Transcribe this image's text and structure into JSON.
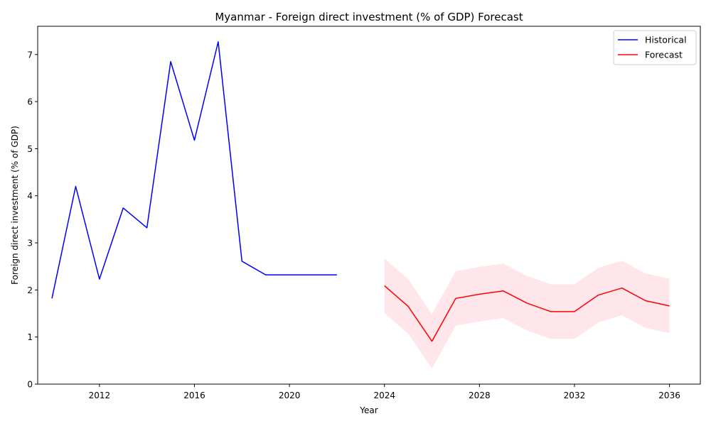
{
  "chart_data": {
    "type": "line",
    "title": "Myanmar - Foreign direct investment (% of GDP) Forecast",
    "xlabel": "Year",
    "ylabel": "Foreign direct investment (% of GDP)",
    "xlim": [
      2009.4,
      2037.3
    ],
    "ylim": [
      0,
      7.6
    ],
    "x_ticks": [
      2012,
      2016,
      2020,
      2024,
      2028,
      2032,
      2036
    ],
    "y_ticks": [
      0,
      1,
      2,
      3,
      4,
      5,
      6,
      7
    ],
    "grid": false,
    "legend_position": "top-right",
    "series": [
      {
        "name": "Historical",
        "color": "#0000ff",
        "x": [
          2010,
          2011,
          2012,
          2013,
          2014,
          2015,
          2016,
          2017,
          2018,
          2019,
          2020,
          2021,
          2022
        ],
        "values": [
          1.82,
          4.2,
          2.23,
          3.74,
          3.32,
          6.85,
          5.18,
          7.27,
          2.61,
          2.32,
          2.32,
          2.32,
          2.32
        ]
      },
      {
        "name": "Forecast",
        "color": "#ff0000",
        "x": [
          2024,
          2025,
          2026,
          2027,
          2028,
          2029,
          2030,
          2031,
          2032,
          2033,
          2034,
          2035,
          2036
        ],
        "values": [
          2.09,
          1.65,
          0.91,
          1.82,
          1.91,
          1.98,
          1.72,
          1.54,
          1.54,
          1.89,
          2.04,
          1.77,
          1.66
        ],
        "lower": [
          1.51,
          1.07,
          0.33,
          1.24,
          1.33,
          1.4,
          1.14,
          0.96,
          0.96,
          1.31,
          1.46,
          1.19,
          1.08
        ],
        "upper": [
          2.67,
          2.23,
          1.49,
          2.4,
          2.49,
          2.56,
          2.3,
          2.12,
          2.12,
          2.47,
          2.62,
          2.35,
          2.24
        ],
        "band_color": "#ffc0cb"
      }
    ]
  }
}
